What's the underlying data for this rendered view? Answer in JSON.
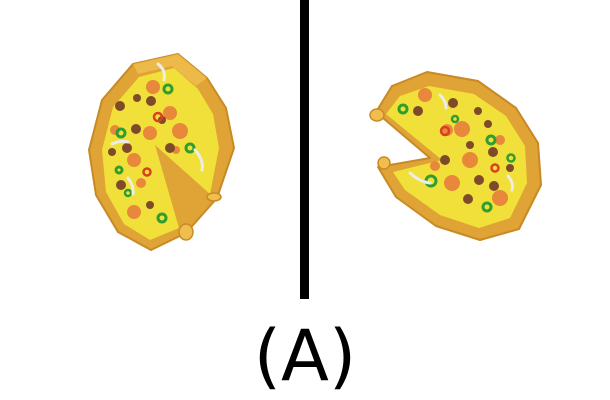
{
  "label": "(A)",
  "colors": {
    "crust": "#E0A335",
    "crust_dark": "#C88A25",
    "crust_light": "#F0BE4E",
    "cheese": "#F1E03A",
    "cheese_shade": "#E8C93A",
    "sausage": "#7E4A2A",
    "pepperoni": "#E8883A",
    "green_pepper": "#2F9E2F",
    "onion": "#EDEDE6",
    "tomato": "#D84020",
    "divider": "#000000"
  },
  "icons": [
    "pizza-left",
    "pizza-right"
  ]
}
